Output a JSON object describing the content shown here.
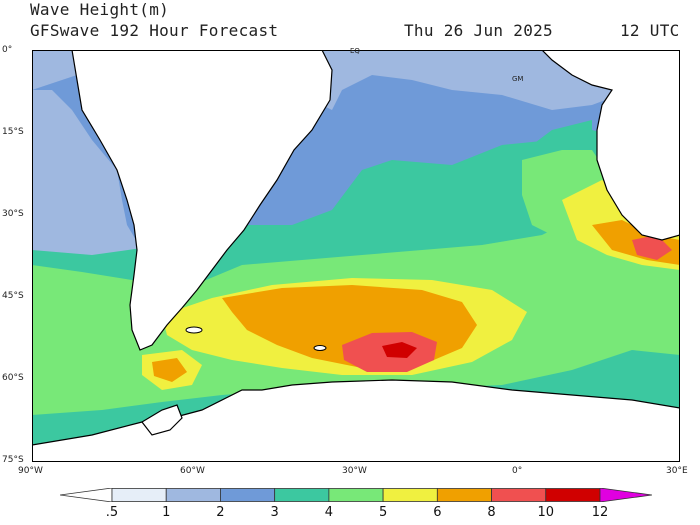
{
  "header": {
    "title": "Wave Height(m)",
    "subtitle": "GFSwave 192 Hour Forecast",
    "date": "Thu 26 Jun 2025",
    "time": "12 UTC"
  },
  "map": {
    "lat_labels": [
      "0°",
      "15°S",
      "30°S",
      "45°S",
      "60°S",
      "75°S"
    ],
    "lon_labels": [
      "90°W",
      "60°W",
      "30°W",
      "0°",
      "30°E"
    ],
    "markers": [
      "EQ",
      "GM"
    ],
    "extent": {
      "lon": [
        -90,
        30
      ],
      "lat": [
        -75,
        0
      ]
    }
  },
  "legend": {
    "levels": [
      ".5",
      "1",
      "2",
      "3",
      "4",
      "5",
      "6",
      "8",
      "10",
      "12"
    ],
    "colors": [
      "#e6eef8",
      "#9fb8e0",
      "#6f9ad8",
      "#3cc8a0",
      "#78e878",
      "#f0f040",
      "#f0a000",
      "#f05050",
      "#d00000",
      "#e000e0"
    ],
    "below_color": "#ffffff"
  }
}
